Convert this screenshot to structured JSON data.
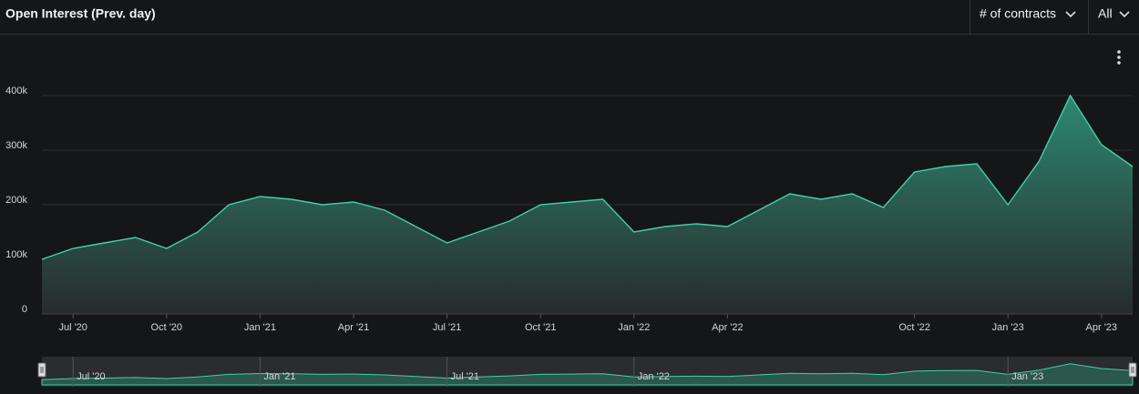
{
  "chart_data": {
    "type": "area",
    "title": "Open Interest (Prev. day)",
    "controls": {
      "measure": "# of contracts",
      "range": "All"
    },
    "x": [
      "2020-06",
      "2020-07",
      "2020-08",
      "2020-09",
      "2020-10",
      "2020-11",
      "2020-12",
      "2021-01",
      "2021-02",
      "2021-03",
      "2021-04",
      "2021-05",
      "2021-06",
      "2021-07",
      "2021-08",
      "2021-09",
      "2021-10",
      "2021-11",
      "2021-12",
      "2022-01",
      "2022-02",
      "2022-03",
      "2022-04",
      "2022-05",
      "2022-06",
      "2022-07",
      "2022-08",
      "2022-09",
      "2022-10",
      "2022-11",
      "2022-12",
      "2023-01",
      "2023-02",
      "2023-03",
      "2023-04",
      "2023-05"
    ],
    "values": [
      100000,
      120000,
      130000,
      140000,
      120000,
      150000,
      200000,
      215000,
      210000,
      200000,
      205000,
      190000,
      160000,
      130000,
      150000,
      170000,
      200000,
      205000,
      210000,
      150000,
      160000,
      165000,
      160000,
      190000,
      220000,
      210000,
      220000,
      195000,
      260000,
      270000,
      275000,
      200000,
      280000,
      400000,
      310000,
      270000
    ],
    "color": "#3fd1ad",
    "xlim": [
      "2020-06",
      "2023-05"
    ],
    "xticks": [
      {
        "value": "2020-07",
        "label": "Jul '20"
      },
      {
        "value": "2020-10",
        "label": "Oct '20"
      },
      {
        "value": "2021-01",
        "label": "Jan '21"
      },
      {
        "value": "2021-04",
        "label": "Apr '21"
      },
      {
        "value": "2021-07",
        "label": "Jul '21"
      },
      {
        "value": "2021-10",
        "label": "Oct '21"
      },
      {
        "value": "2022-01",
        "label": "Jan '22"
      },
      {
        "value": "2022-04",
        "label": "Apr '22"
      },
      {
        "value": "2022-10",
        "label": "Oct '22"
      },
      {
        "value": "2023-01",
        "label": "Jan '23"
      },
      {
        "value": "2023-04",
        "label": "Apr '23"
      }
    ],
    "ylim": [
      0,
      500000
    ],
    "yticks": [
      0,
      {
        "value": 100000,
        "label": "100k"
      },
      {
        "value": 200000,
        "label": "200k"
      },
      {
        "value": 300000,
        "label": "300k"
      },
      {
        "value": 400000,
        "label": "400k"
      }
    ],
    "grid": true
  }
}
